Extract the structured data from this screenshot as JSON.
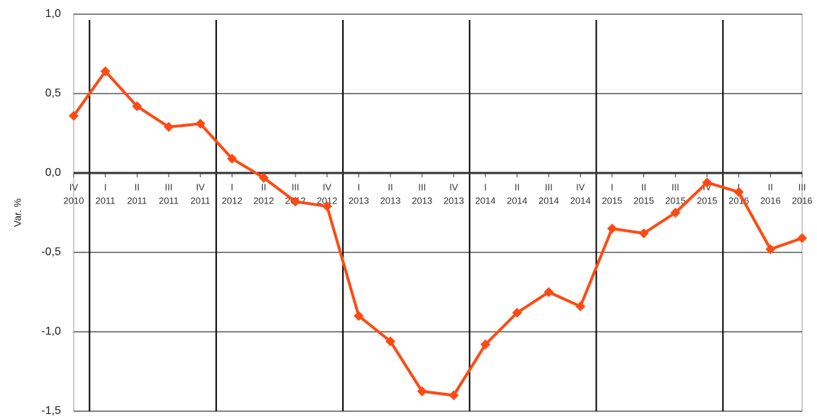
{
  "chart_data": {
    "type": "line",
    "y_label": "Var. %",
    "categories": [
      [
        "IV",
        "2010"
      ],
      [
        "I",
        "2011"
      ],
      [
        "II",
        "2011"
      ],
      [
        "III",
        "2011"
      ],
      [
        "IV",
        "2011"
      ],
      [
        "I",
        "2012"
      ],
      [
        "II",
        "2012"
      ],
      [
        "III",
        "2012"
      ],
      [
        "IV",
        "2012"
      ],
      [
        "I",
        "2013"
      ],
      [
        "II",
        "2013"
      ],
      [
        "III",
        "2013"
      ],
      [
        "IV",
        "2013"
      ],
      [
        "I",
        "2014"
      ],
      [
        "II",
        "2014"
      ],
      [
        "III",
        "2014"
      ],
      [
        "IV",
        "2014"
      ],
      [
        "I",
        "2015"
      ],
      [
        "II",
        "2015"
      ],
      [
        "III",
        "2015"
      ],
      [
        "IV",
        "2015"
      ],
      [
        "I",
        "2016"
      ],
      [
        "II",
        "2016"
      ],
      [
        "III",
        "2016"
      ]
    ],
    "series": [
      {
        "color": "#fe4a12",
        "values": [
          0.36,
          0.64,
          0.42,
          0.29,
          0.31,
          0.09,
          -0.03,
          -0.18,
          -0.21,
          -0.9,
          -1.06,
          -1.375,
          -1.4,
          -1.08,
          -0.88,
          -0.75,
          -0.84,
          -0.35,
          -0.38,
          -0.25,
          -0.06,
          -0.12,
          -0.48,
          -0.41
        ]
      }
    ],
    "ylim": [
      -1.5,
      1.0
    ],
    "yticks": [
      {
        "value": -1.5,
        "label": "-1,5"
      },
      {
        "value": -1.0,
        "label": "-1,0"
      },
      {
        "value": -0.5,
        "label": "-0,5"
      },
      {
        "value": 0.0,
        "label": "0,0"
      },
      {
        "value": 0.5,
        "label": "0,5"
      },
      {
        "value": 1.0,
        "label": "1,0"
      }
    ],
    "grid": true
  }
}
